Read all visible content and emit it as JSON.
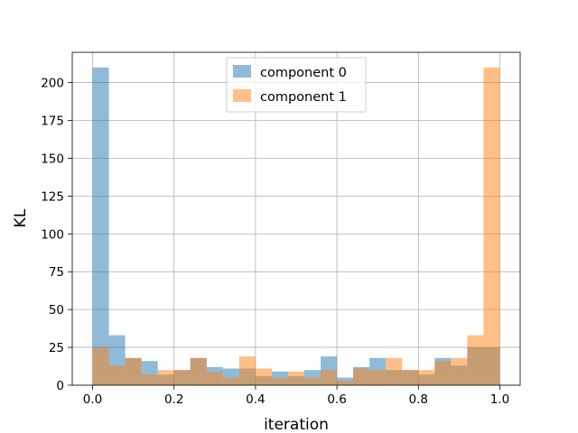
{
  "chart_data": {
    "type": "bar",
    "title": "",
    "xlabel": "iteration",
    "ylabel": "KL",
    "xlim": [
      -0.05,
      1.05
    ],
    "ylim": [
      0,
      220
    ],
    "xticks": [
      0.0,
      0.2,
      0.4,
      0.6,
      0.8,
      1.0
    ],
    "xtick_labels": [
      "0.0",
      "0.2",
      "0.4",
      "0.6",
      "0.8",
      "1.0"
    ],
    "yticks": [
      0,
      25,
      50,
      75,
      100,
      125,
      150,
      175,
      200
    ],
    "ytick_labels": [
      "0",
      "25",
      "50",
      "75",
      "100",
      "125",
      "150",
      "175",
      "200"
    ],
    "grid": true,
    "legend_position": "top-center",
    "bin_edges": [
      0.0,
      0.04,
      0.08,
      0.12,
      0.16,
      0.2,
      0.24,
      0.28,
      0.32,
      0.36,
      0.4,
      0.44,
      0.48,
      0.52,
      0.56,
      0.6,
      0.64,
      0.68,
      0.72,
      0.76,
      0.8,
      0.84,
      0.88,
      0.92,
      0.96,
      1.0
    ],
    "series": [
      {
        "name": "component 0",
        "color": "#1f77b4",
        "alpha": 0.5,
        "values": [
          210,
          33,
          18,
          16,
          7,
          10,
          18,
          12,
          11,
          11,
          6,
          9,
          6,
          10,
          19,
          5,
          12,
          18,
          10,
          10,
          7,
          18,
          13,
          25,
          25
        ]
      },
      {
        "name": "component 1",
        "color": "#ff7f0e",
        "alpha": 0.5,
        "values": [
          25,
          13,
          18,
          7,
          10,
          10,
          18,
          9,
          5,
          19,
          11,
          5,
          9,
          5,
          10,
          3,
          11,
          10,
          18,
          10,
          10,
          16,
          18,
          33,
          210
        ]
      }
    ]
  }
}
